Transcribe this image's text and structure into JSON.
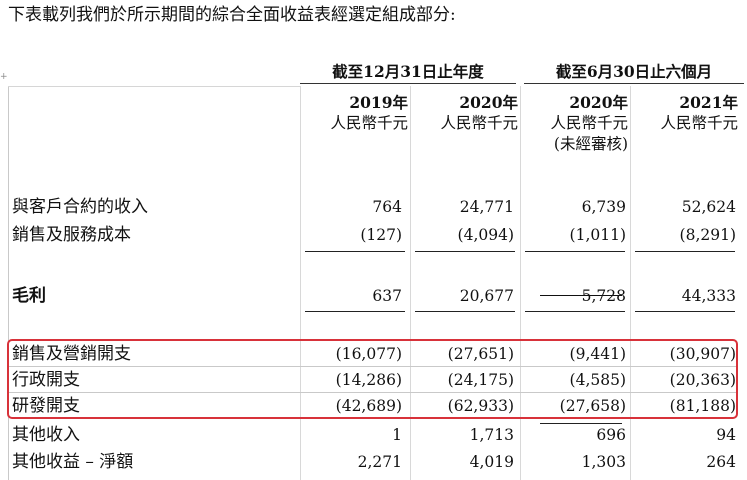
{
  "intro": "下表載列我們於所示期間的綜合全面收益表經選定組成部分:",
  "anchor_mark": "+",
  "headers": {
    "group1": "截至12月31日止年度",
    "group2": "截至6月30日止六個月",
    "columns": [
      {
        "year": "2019年",
        "currency": "人民幣千元",
        "note": ""
      },
      {
        "year": "2020年",
        "currency": "人民幣千元",
        "note": ""
      },
      {
        "year": "2020年",
        "currency": "人民幣千元",
        "note": "(未經審核)"
      },
      {
        "year": "2021年",
        "currency": "人民幣千元",
        "note": ""
      }
    ]
  },
  "rows": [
    {
      "label": "與客戶合約的收入",
      "values": [
        "764",
        "24,771",
        "6,739",
        "52,624"
      ],
      "bold": false
    },
    {
      "label": "銷售及服務成本",
      "values": [
        "(127)",
        "(4,094)",
        "(1,011)",
        "(8,291)"
      ],
      "bold": false
    },
    {
      "label": "毛利",
      "values": [
        "637",
        "20,677",
        "5,728",
        "44,333"
      ],
      "bold": true
    },
    {
      "label": "銷售及營銷開支",
      "values": [
        "(16,077)",
        "(27,651)",
        "(9,441)",
        "(30,907)"
      ],
      "bold": false
    },
    {
      "label": "行政開支",
      "values": [
        "(14,286)",
        "(24,175)",
        "(4,585)",
        "(20,363)"
      ],
      "bold": false
    },
    {
      "label": "研發開支",
      "values": [
        "(42,689)",
        "(62,933)",
        "(27,658)",
        "(81,188)"
      ],
      "bold": false
    },
    {
      "label": "其他收入",
      "values": [
        "1",
        "1,713",
        "696",
        "94"
      ],
      "bold": false
    },
    {
      "label": "其他收益 – 淨額",
      "values": [
        "2,271",
        "4,019",
        "1,303",
        "264"
      ],
      "bold": false
    }
  ]
}
